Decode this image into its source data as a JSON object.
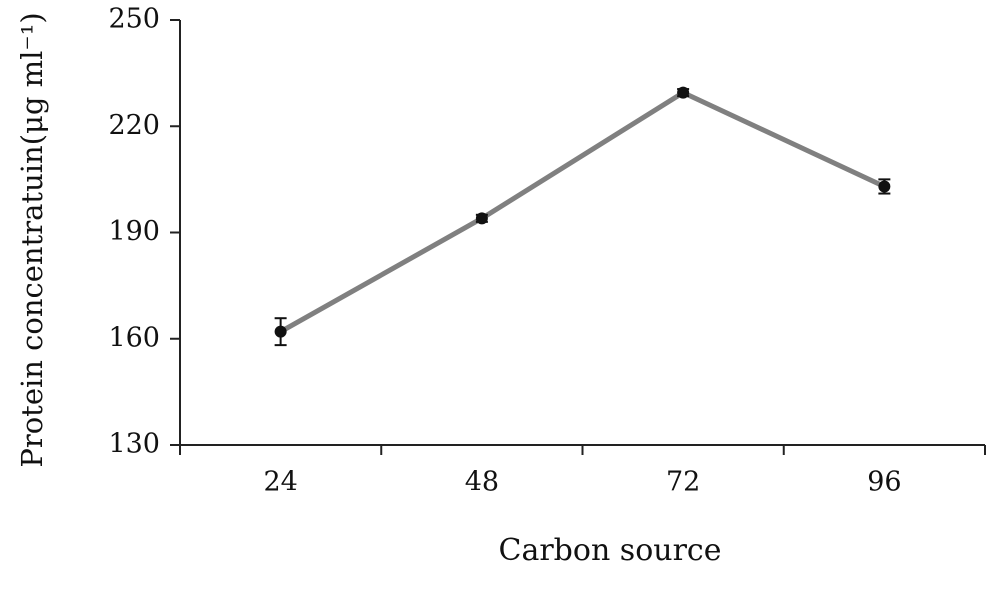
{
  "chart_data": {
    "type": "line",
    "x_label": "Carbon source",
    "y_label": "Protein concentratuin(μg ml⁻¹)",
    "categories": [
      "24",
      "48",
      "72",
      "96"
    ],
    "series": [
      {
        "name": "Protein",
        "color": "#808080",
        "marker_color": "#111111",
        "values": [
          162,
          194,
          229.5,
          203
        ],
        "errors": [
          3.8,
          1,
          1,
          2
        ]
      }
    ],
    "ylim": [
      130,
      250
    ],
    "yticks": [
      130,
      160,
      190,
      220,
      250
    ],
    "grid": false
  }
}
